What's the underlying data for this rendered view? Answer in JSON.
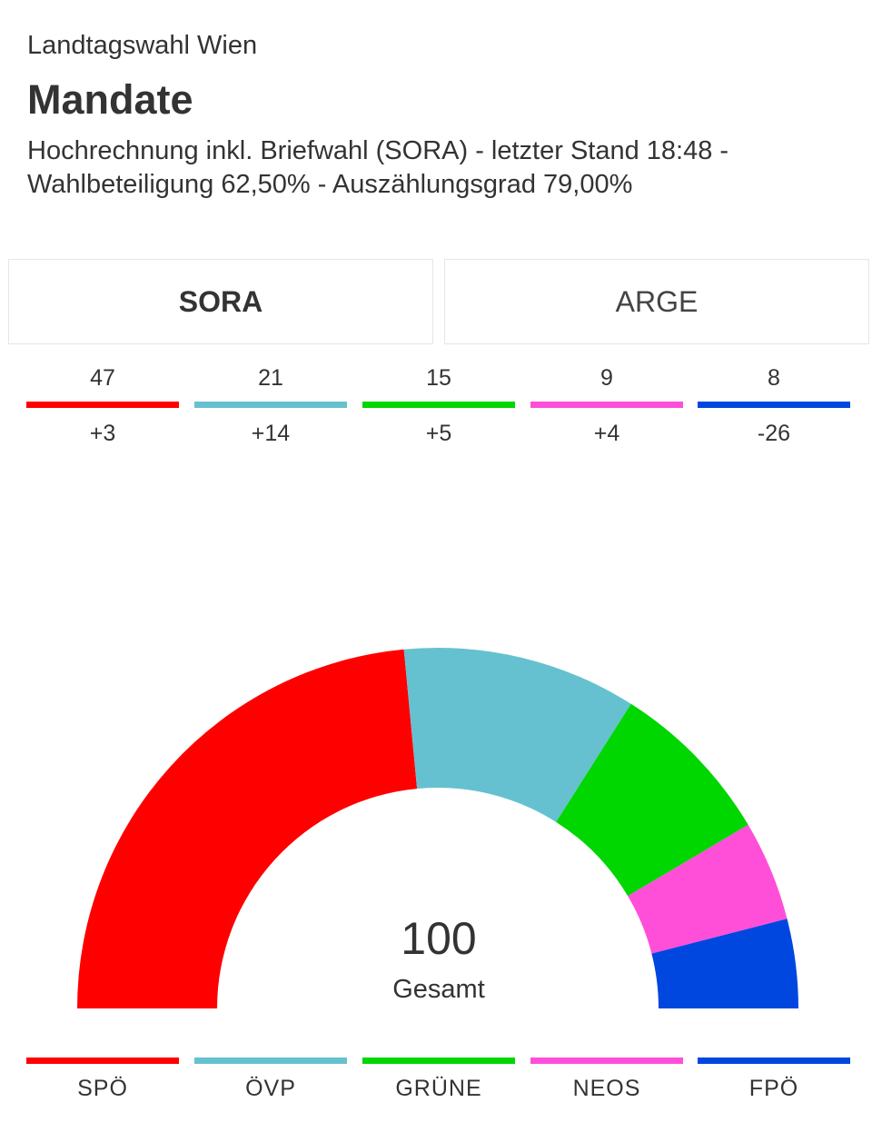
{
  "header": {
    "supertitle": "Landtagswahl Wien",
    "title": "Mandate",
    "description": "Hochrechnung inkl. Briefwahl (SORA) - letzter Stand 18:48 - Wahlbeteiligung 62,50% - Auszählungsgrad 79,00%"
  },
  "tabs": [
    {
      "label": "SORA",
      "active": true
    },
    {
      "label": "ARGE",
      "active": false
    }
  ],
  "chart_data": {
    "type": "pie",
    "variant": "semicircle-hemicycle",
    "categories": [
      "SPÖ",
      "ÖVP",
      "GRÜNE",
      "NEOS",
      "FPÖ"
    ],
    "values": [
      47,
      21,
      15,
      9,
      8
    ],
    "changes": [
      "+3",
      "+14",
      "+5",
      "+4",
      "-26"
    ],
    "colors": [
      "#ff0000",
      "#65c1cf",
      "#00d600",
      "#ff4fd8",
      "#0047e0"
    ],
    "total": "100",
    "total_label": "Gesamt"
  }
}
